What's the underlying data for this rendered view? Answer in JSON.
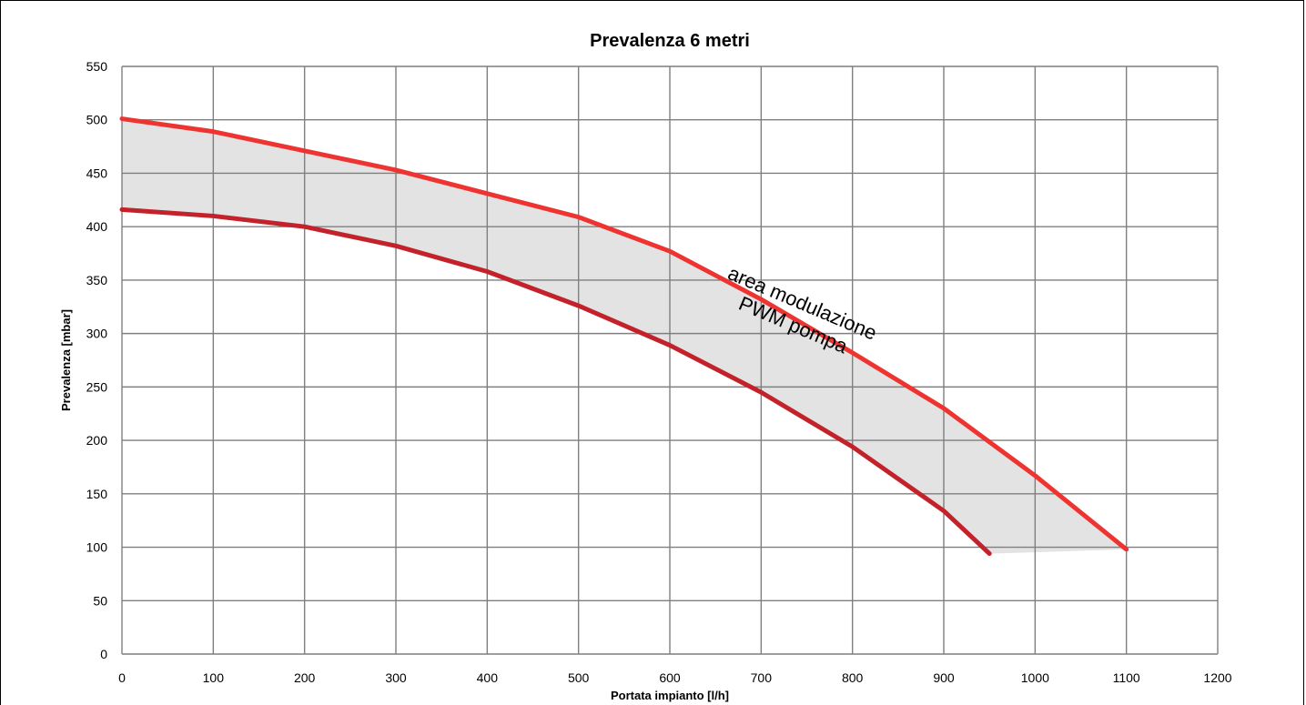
{
  "chart_data": {
    "type": "line",
    "title": "Prevalenza 6 metri",
    "xlabel": "Portata impianto [l/h]",
    "ylabel": "Prevalenza [mbar]",
    "xlim": [
      0,
      1200
    ],
    "ylim": [
      0,
      550
    ],
    "x_ticks": [
      "0",
      "100",
      "200",
      "300",
      "400",
      "500",
      "600",
      "700",
      "800",
      "900",
      "1000",
      "1100",
      "1200"
    ],
    "y_ticks": [
      "0",
      "50",
      "100",
      "150",
      "200",
      "250",
      "300",
      "350",
      "400",
      "450",
      "500",
      "550"
    ],
    "grid": true,
    "series": [
      {
        "color": "#ee3431",
        "points": [
          [
            0,
            501
          ],
          [
            100,
            489
          ],
          [
            200,
            471
          ],
          [
            300,
            453
          ],
          [
            400,
            431
          ],
          [
            500,
            409
          ],
          [
            600,
            377
          ],
          [
            700,
            332
          ],
          [
            800,
            282
          ],
          [
            900,
            230
          ],
          [
            1000,
            167
          ],
          [
            1100,
            98
          ]
        ]
      },
      {
        "color": "#c4222a",
        "points": [
          [
            0,
            416
          ],
          [
            100,
            410
          ],
          [
            200,
            400
          ],
          [
            300,
            382
          ],
          [
            400,
            358
          ],
          [
            500,
            326
          ],
          [
            600,
            289
          ],
          [
            700,
            245
          ],
          [
            800,
            194
          ],
          [
            900,
            134
          ],
          [
            950,
            94
          ]
        ]
      }
    ],
    "fill_between": {
      "color": "#e3e3e3"
    },
    "annotation": {
      "lines": [
        "area modulazione",
        "PWM pompa"
      ],
      "x": 740,
      "y": 318,
      "rotation_deg": 23
    }
  }
}
